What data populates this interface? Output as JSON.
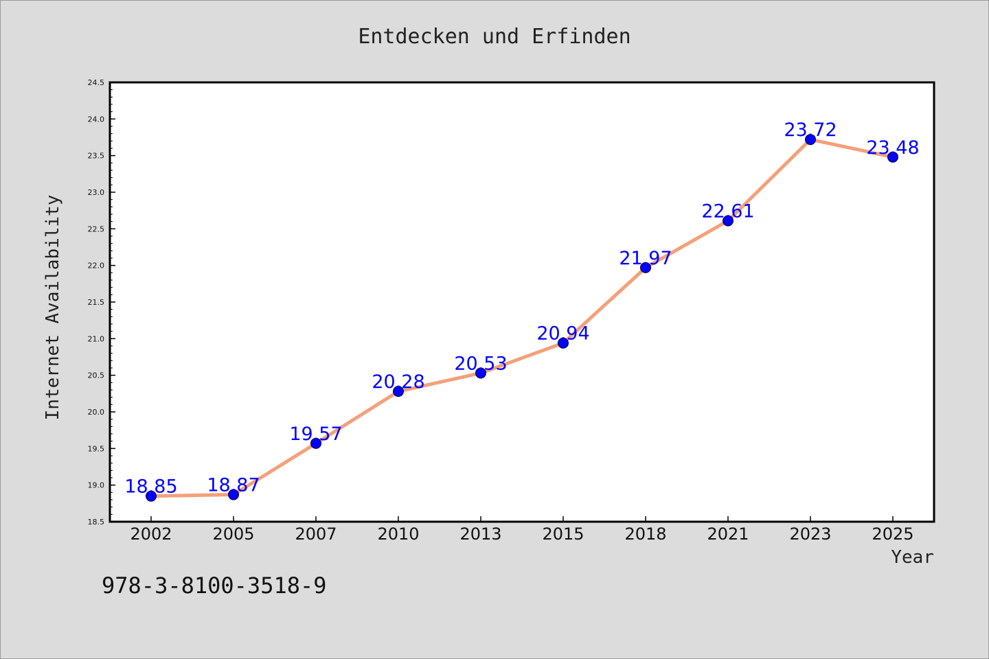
{
  "chart_data": {
    "type": "line",
    "title": "Entdecken und Erfinden",
    "xlabel": "Year",
    "ylabel": "Internet Availability",
    "categories": [
      "2002",
      "2005",
      "2007",
      "2010",
      "2013",
      "2015",
      "2018",
      "2021",
      "2023",
      "2025"
    ],
    "series": [
      {
        "values": [
          18.85,
          18.87,
          19.57,
          20.28,
          20.53,
          20.94,
          21.97,
          22.61,
          23.72,
          23.48
        ],
        "line_color": "#f4a07a",
        "marker_color": "#0000ff"
      }
    ],
    "data_labels": [
      "18.85",
      "18.87",
      "19.57",
      "20.28",
      "20.53",
      "20.94",
      "21.97",
      "22.61",
      "23.72",
      "23.48"
    ],
    "ylim": [
      18.5,
      24.5
    ],
    "yticks": [
      "18.5",
      "19.0",
      "19.5",
      "20.0",
      "20.5",
      "21.0",
      "21.5",
      "22.0",
      "22.5",
      "23.0",
      "23.5",
      "24.0",
      "24.5"
    ],
    "grid": false,
    "label_color": "#0000ff",
    "annotation": "978-3-8100-3518-9"
  }
}
